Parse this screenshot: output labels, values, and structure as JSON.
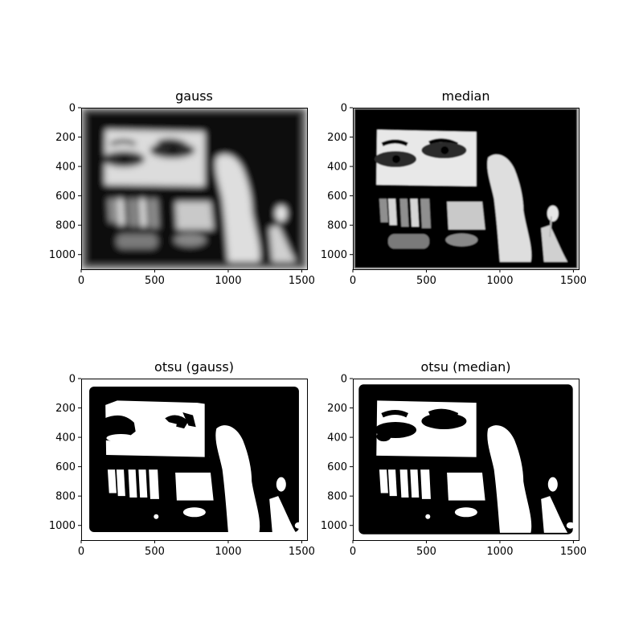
{
  "chart_data": [
    {
      "type": "image",
      "title": "gauss",
      "xticks": [
        0,
        500,
        1000,
        1500
      ],
      "yticks": [
        0,
        200,
        400,
        600,
        800,
        1000
      ],
      "xlim": [
        0,
        1536
      ],
      "ylim": [
        1100,
        0
      ],
      "style": "blur",
      "rendering": "grayscale"
    },
    {
      "type": "image",
      "title": "median",
      "xticks": [
        0,
        500,
        1000,
        1500
      ],
      "yticks": [
        0,
        200,
        400,
        600,
        800,
        1000
      ],
      "xlim": [
        0,
        1536
      ],
      "ylim": [
        1100,
        0
      ],
      "style": "median",
      "rendering": "grayscale"
    },
    {
      "type": "image",
      "title": "otsu (gauss)",
      "xticks": [
        0,
        500,
        1000,
        1500
      ],
      "yticks": [
        0,
        200,
        400,
        600,
        800,
        1000
      ],
      "xlim": [
        0,
        1536
      ],
      "ylim": [
        1100,
        0
      ],
      "style": "otsu-gauss",
      "rendering": "binary"
    },
    {
      "type": "image",
      "title": "otsu (median)",
      "xticks": [
        0,
        500,
        1000,
        1500
      ],
      "yticks": [
        0,
        200,
        400,
        600,
        800,
        1000
      ],
      "xlim": [
        0,
        1536
      ],
      "ylim": [
        1100,
        0
      ],
      "style": "otsu-median",
      "rendering": "binary"
    }
  ],
  "colors": {
    "background": "#ffffff",
    "image_dark": "#000000",
    "image_light": "#ffffff",
    "axis": "#000000"
  }
}
